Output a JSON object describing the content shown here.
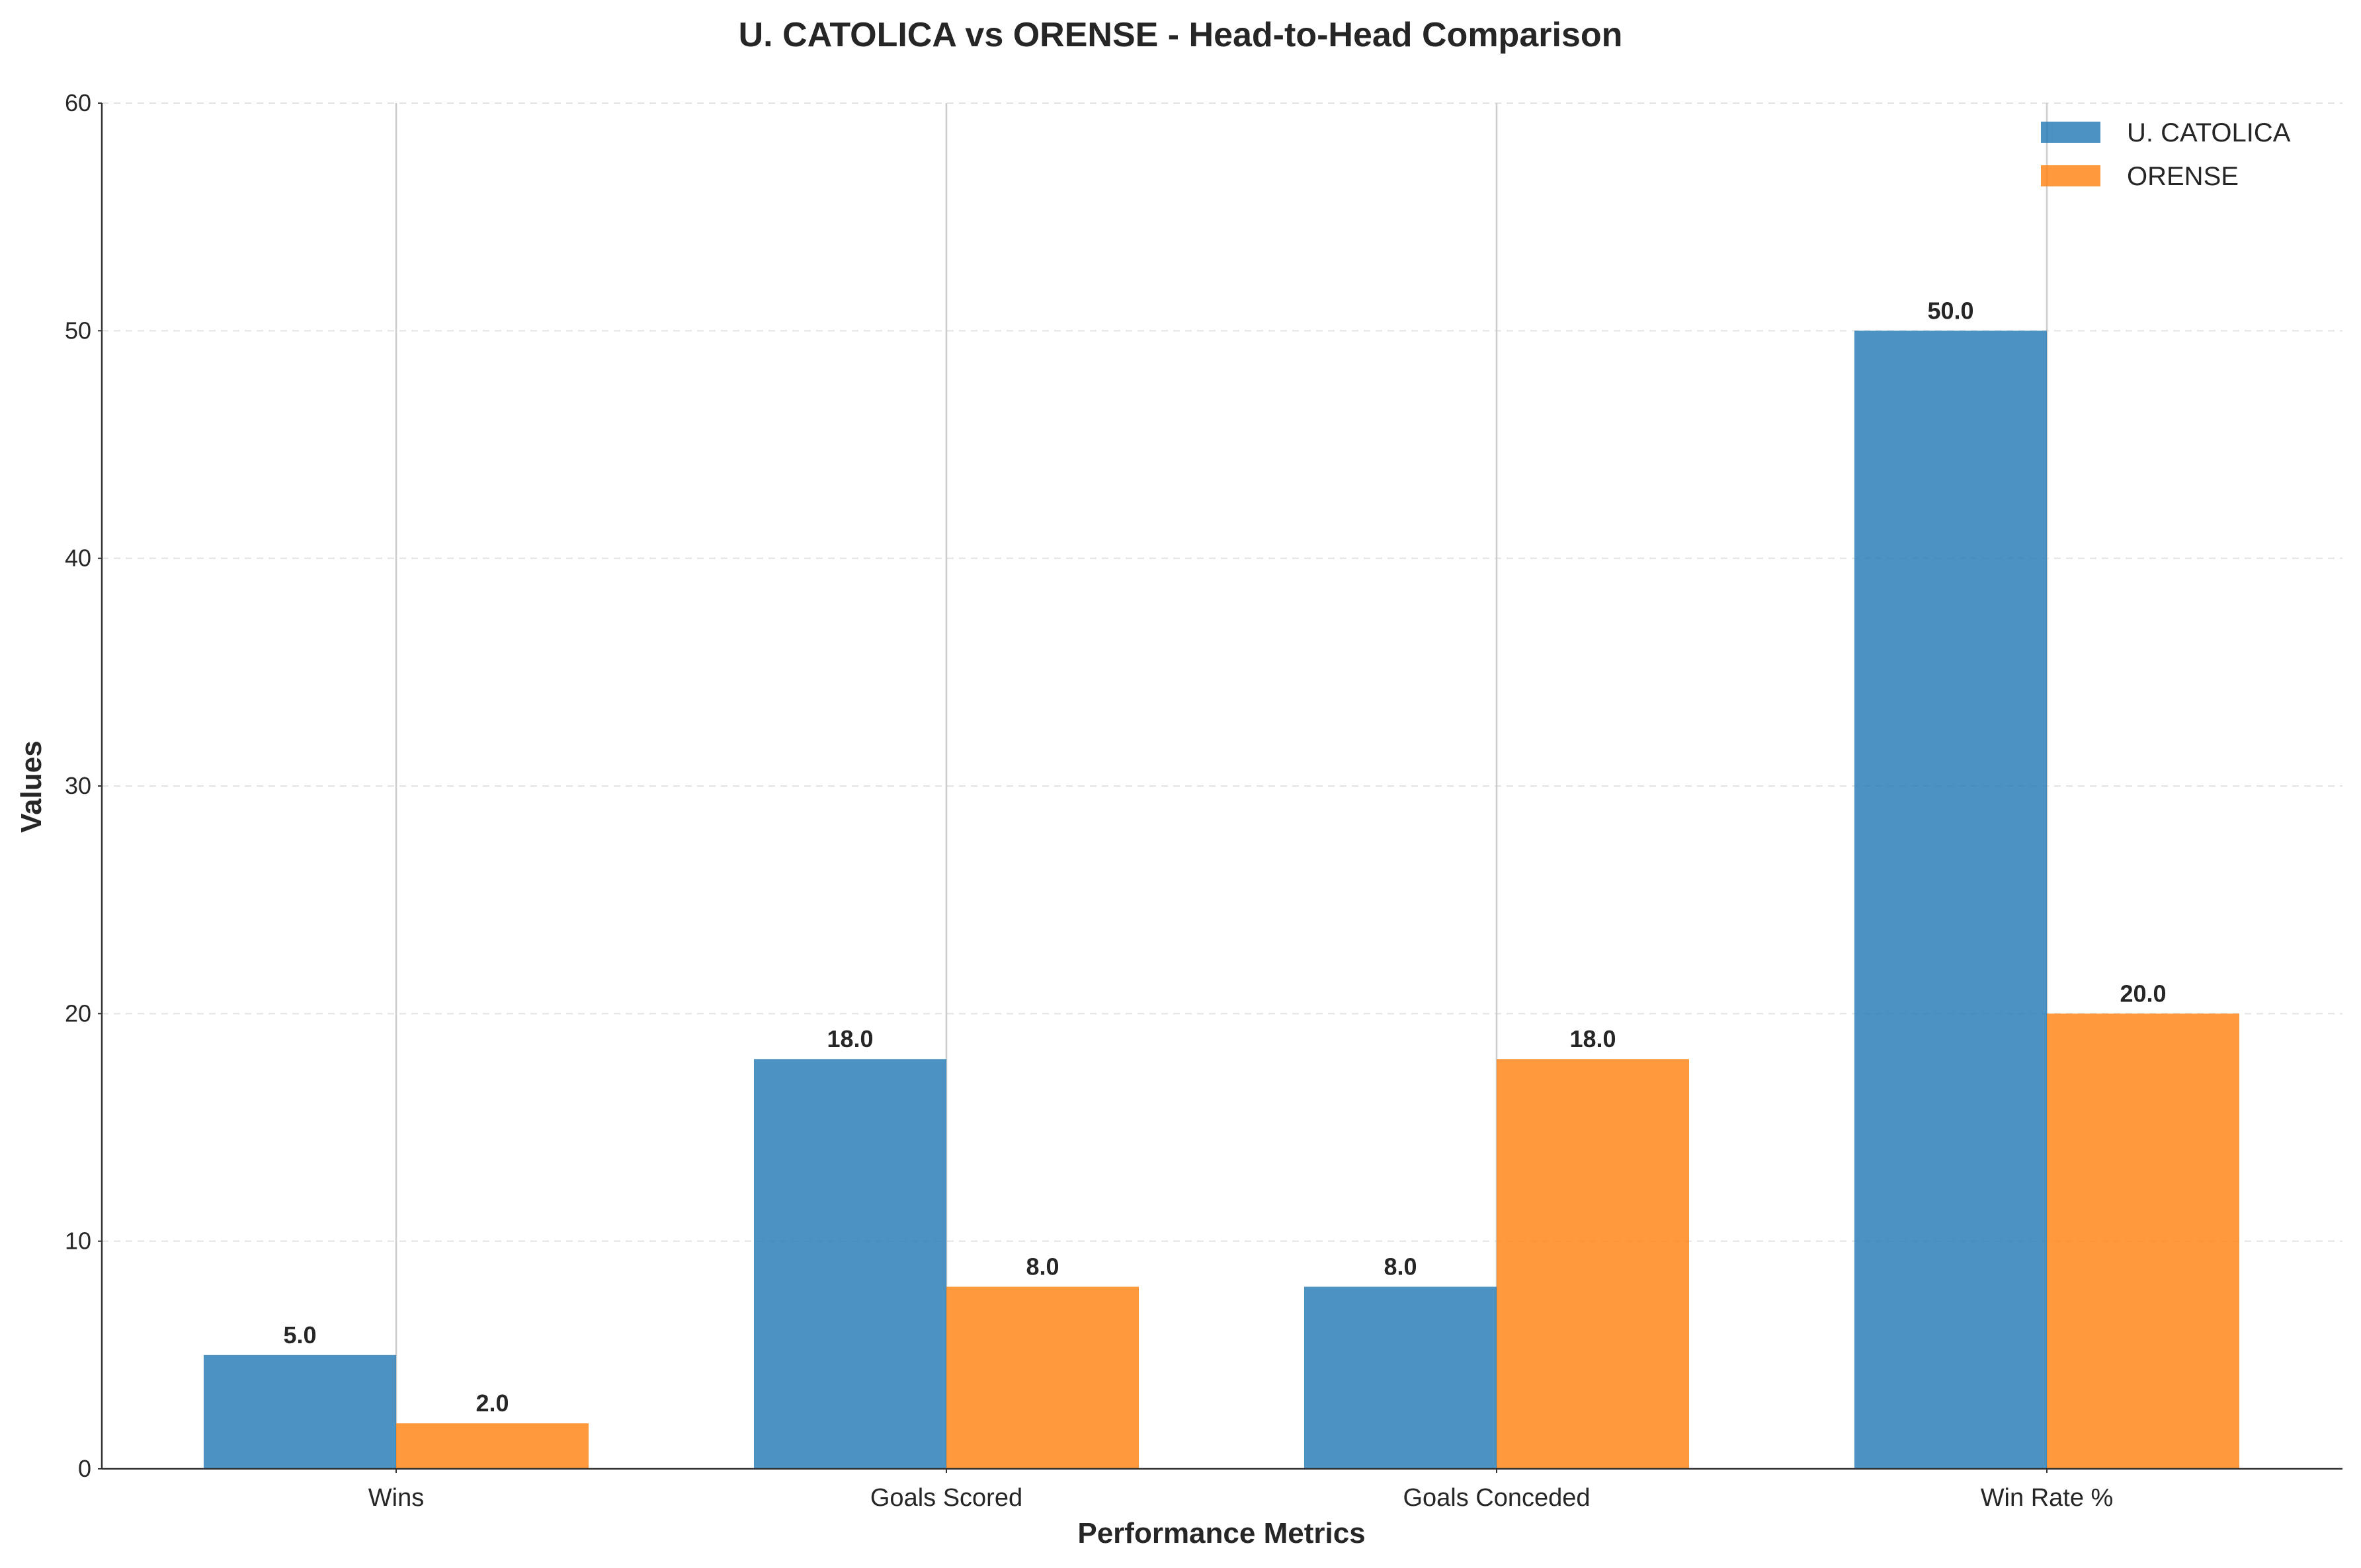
{
  "chart_data": {
    "type": "bar",
    "title": "U. CATOLICA vs ORENSE - Head-to-Head Comparison",
    "xlabel": "Performance Metrics",
    "ylabel": "Values",
    "categories": [
      "Wins",
      "Goals Scored",
      "Goals Conceded",
      "Win Rate %"
    ],
    "series": [
      {
        "name": "U. CATOLICA",
        "values": [
          5.0,
          18.0,
          8.0,
          50.0
        ],
        "labels": [
          "5.0",
          "18.0",
          "8.0",
          "50.0"
        ],
        "color": "#1f77b4"
      },
      {
        "name": "ORENSE",
        "values": [
          2.0,
          8.0,
          18.0,
          20.0
        ],
        "labels": [
          "2.0",
          "8.0",
          "18.0",
          "20.0"
        ],
        "color": "#ff7f0e"
      }
    ],
    "ylim": [
      0,
      60
    ],
    "yticks": [
      0,
      10,
      20,
      30,
      40,
      50,
      60
    ],
    "ytick_labels": [
      "0",
      "10",
      "20",
      "30",
      "40",
      "50",
      "60"
    ],
    "grid": true,
    "legend_position": "top-right"
  }
}
